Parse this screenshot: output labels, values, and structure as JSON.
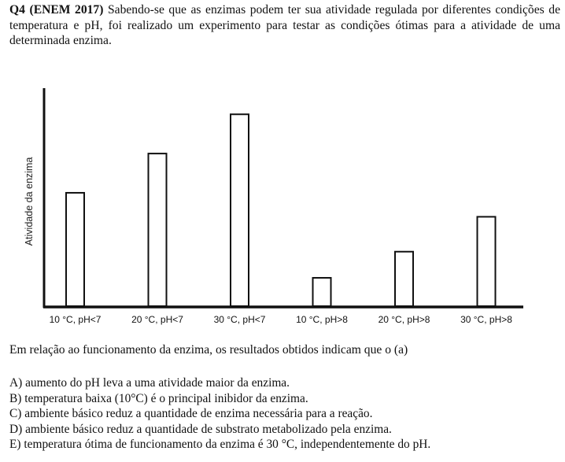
{
  "question": {
    "number": "Q4",
    "source": "(ENEM 2017)",
    "statement": "Sabendo-se que as enzimas podem ter sua atividade regulada por diferentes condições de temperatura e pH, foi realizado um experimento para testar as condições ótimas para a atividade de uma determinada enzima.",
    "prompt": "Em relação ao funcionamento da enzima, os resultados obtidos indicam que o (a)"
  },
  "options": [
    "A) aumento do pH leva a uma atividade maior da enzima.",
    "B) temperatura baixa (10°C) é o principal inibidor da enzima.",
    "C) ambiente básico reduz a quantidade de enzima necessária para a reação.",
    "D) ambiente básico reduz a quantidade de substrato metabolizado pela enzima.",
    "E) temperatura ótima de funcionamento da enzima é 30 °C, independentemente do pH."
  ],
  "chart_data": {
    "type": "bar",
    "title": "",
    "xlabel": "",
    "ylabel": "Atividade da enzima",
    "categories": [
      "10 °C, pH<7",
      "20 °C, pH<7",
      "30 °C, pH<7",
      "10 °C, pH>8",
      "20 °C, pH>8",
      "30 °C, pH>8"
    ],
    "values": [
      52,
      70,
      88,
      13,
      25,
      41
    ],
    "ylim": [
      0,
      100
    ],
    "grid": false,
    "y_ticks_shown": false
  }
}
